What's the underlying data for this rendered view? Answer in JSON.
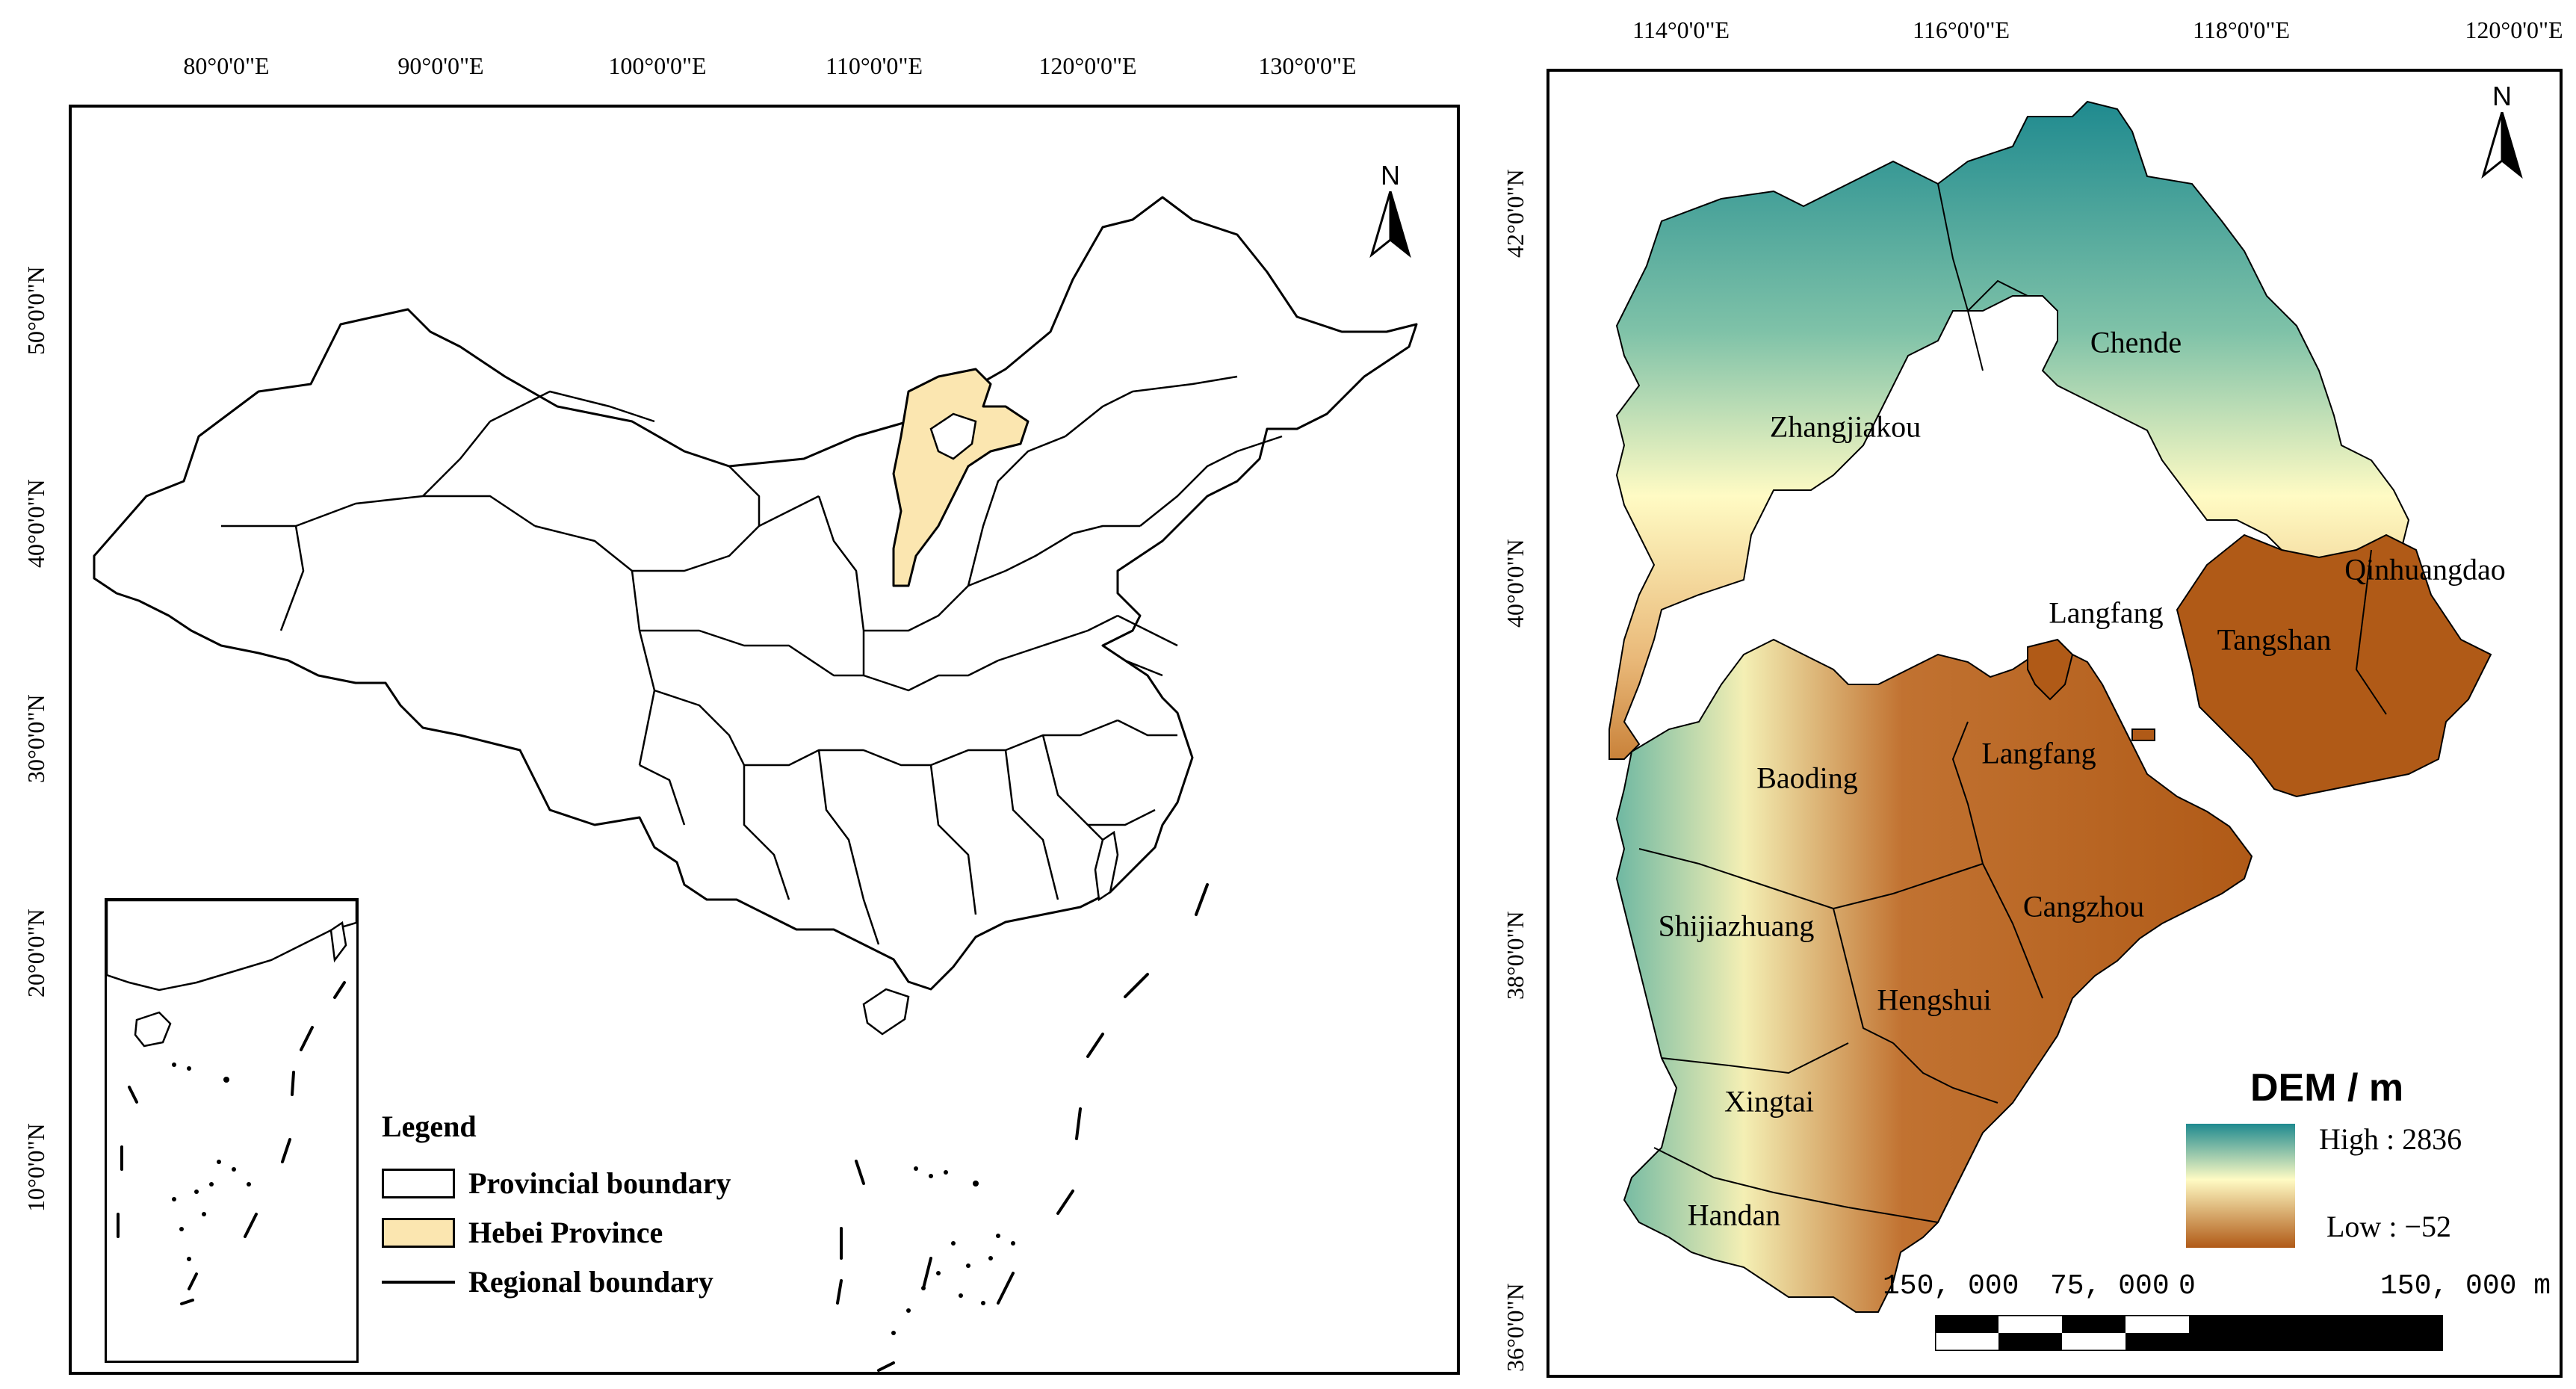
{
  "left_map": {
    "top_ticks": [
      "80°0'0\"E",
      "90°0'0\"E",
      "100°0'0\"E",
      "110°0'0\"E",
      "120°0'0\"E",
      "130°0'0\"E"
    ],
    "left_ticks": [
      "50°0'0\"N",
      "40°0'0\"N",
      "30°0'0\"N",
      "20°0'0\"N",
      "10°0'0\"N"
    ],
    "north_label": "N",
    "legend": {
      "title": "Legend",
      "items": [
        "Provincial boundary",
        "Hebei Province",
        "Regional boundary"
      ],
      "colors": {
        "provincial": "#ffffff",
        "hebei": "#fbe6b0",
        "regional": "#000000"
      }
    }
  },
  "right_map": {
    "top_ticks": [
      "114°0'0\"E",
      "116°0'0\"E",
      "118°0'0\"E",
      "120°0'0\"E"
    ],
    "left_ticks": [
      "42°0'0\"N",
      "40°0'0\"N",
      "38°0'0\"N",
      "36°0'0\"N"
    ],
    "north_label": "N",
    "cities": [
      "Zhangjiakou",
      "Chende",
      "Langfang",
      "Qinhuangdao",
      "Tangshan",
      "Baoding",
      "Langfang",
      "Cangzhou",
      "Shijiazhuang",
      "Hengshui",
      "Xingtai",
      "Handan"
    ],
    "dem": {
      "title": "DEM / m",
      "high": "High : 2836",
      "low": "Low : −52",
      "colors": {
        "high": "#1f8a8f",
        "mid": "#fffbc4",
        "low": "#b05a17"
      }
    },
    "scale": {
      "labels": [
        "150, 000",
        "75, 000",
        "0",
        "150, 000 m"
      ]
    }
  }
}
